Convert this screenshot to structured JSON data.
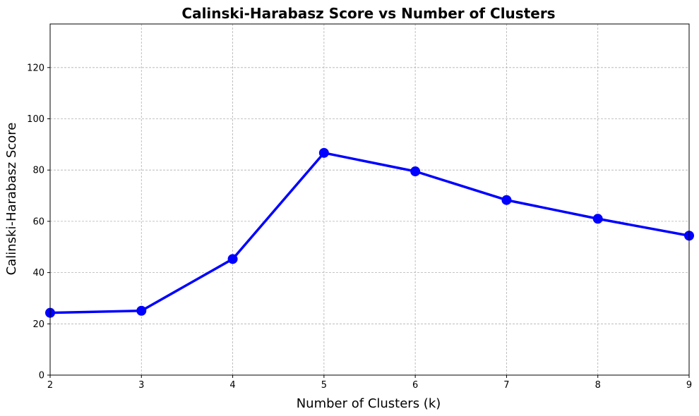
{
  "chart_data": {
    "type": "line",
    "title": "Calinski-Harabasz Score vs Number of Clusters",
    "xlabel": "Number of Clusters (k)",
    "ylabel": "Calinski-Harabasz Score",
    "x": [
      2,
      3,
      4,
      5,
      6,
      7,
      8,
      9
    ],
    "series": [
      {
        "values": [
          24.3,
          25.1,
          45.3,
          86.7,
          79.5,
          68.3,
          61.0,
          54.4
        ],
        "color": "#0000ff",
        "marker": "circle"
      }
    ],
    "xlim": [
      2,
      9
    ],
    "ylim": [
      0,
      137
    ],
    "xticks": [
      "2",
      "3",
      "4",
      "5",
      "6",
      "7",
      "8",
      "9"
    ],
    "yticks": [
      "0",
      "20",
      "40",
      "60",
      "80",
      "100",
      "120"
    ],
    "grid": true
  }
}
